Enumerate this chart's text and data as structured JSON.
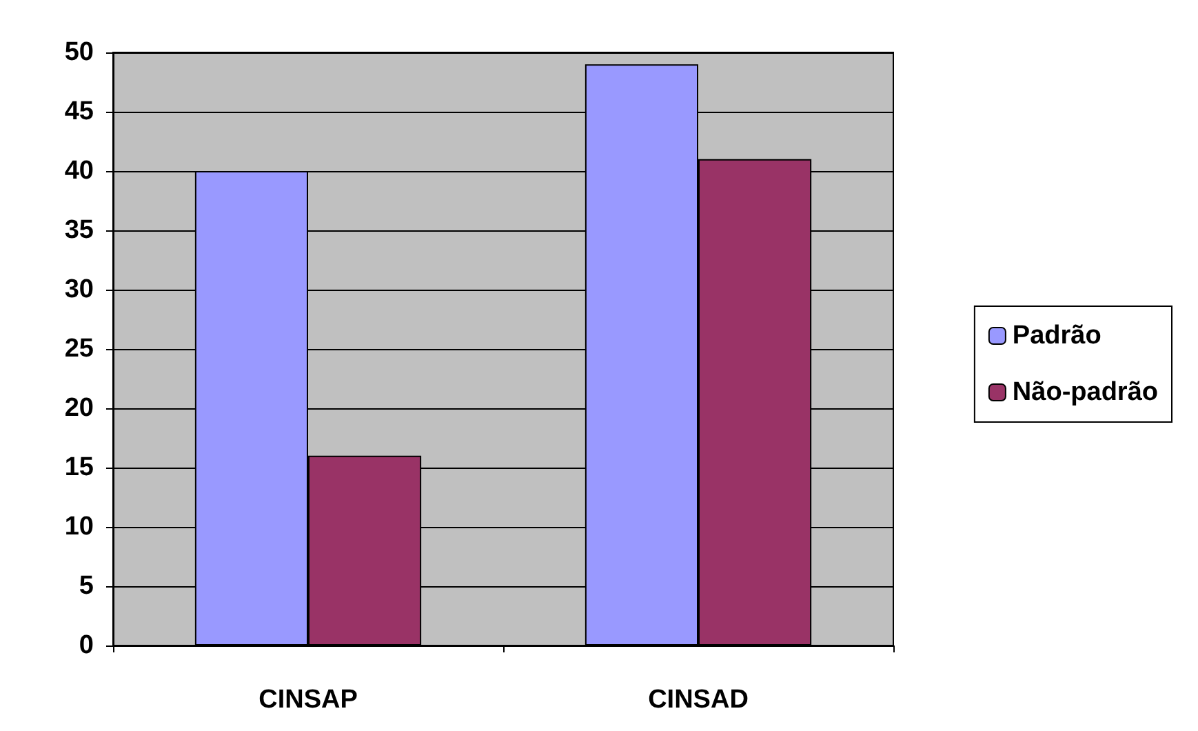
{
  "chart_data": {
    "type": "bar",
    "categories": [
      "CINSAP",
      "CINSAD"
    ],
    "series": [
      {
        "name": "Padrão",
        "color": "#9999ff",
        "values": [
          40,
          49
        ]
      },
      {
        "name": "Não-padrão",
        "color": "#993366",
        "values": [
          16,
          41
        ]
      }
    ],
    "ylim": [
      0,
      50
    ],
    "yticks": [
      0,
      5,
      10,
      15,
      20,
      25,
      30,
      35,
      40,
      45,
      50
    ],
    "grid": "y",
    "legend": "right"
  }
}
